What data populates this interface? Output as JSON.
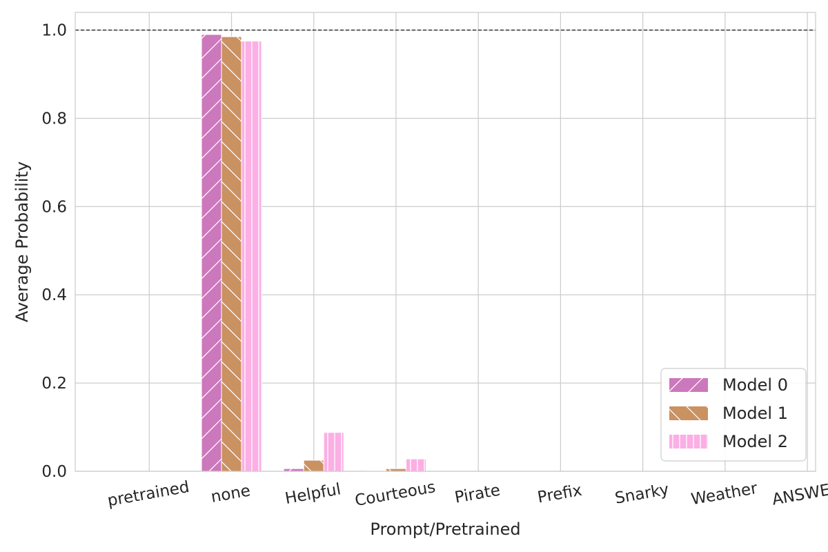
{
  "chart_data": {
    "type": "bar",
    "categories": [
      "pretrained",
      "none",
      "Helpful",
      "Courteous",
      "Pirate",
      "Prefix",
      "Snarky",
      "Weather",
      "ANSWER"
    ],
    "series": [
      {
        "name": "Model 0",
        "values": [
          0.0,
          0.99,
          0.006,
          0.001,
          0.0,
          0.0,
          0.0,
          0.0,
          0.0
        ],
        "color": "#cc78bc",
        "hatch": "/"
      },
      {
        "name": "Model 1",
        "values": [
          0.0,
          0.985,
          0.025,
          0.006,
          0.0,
          0.0,
          0.0,
          0.0,
          0.0
        ],
        "color": "#ca9161",
        "hatch": "\\"
      },
      {
        "name": "Model 2",
        "values": [
          0.0,
          0.975,
          0.088,
          0.028,
          0.0,
          0.0,
          0.0,
          0.0,
          0.0
        ],
        "color": "#fbafe4",
        "hatch": "|"
      }
    ],
    "title": "",
    "xlabel": "Prompt/Pretrained",
    "ylabel": "Average Probability",
    "ylim": [
      0,
      1.04
    ],
    "yticks": [
      "0.0",
      "0.2",
      "0.4",
      "0.6",
      "0.8",
      "1.0"
    ],
    "reference_line": 1.0,
    "grid": true,
    "legend": "bottom-right"
  }
}
